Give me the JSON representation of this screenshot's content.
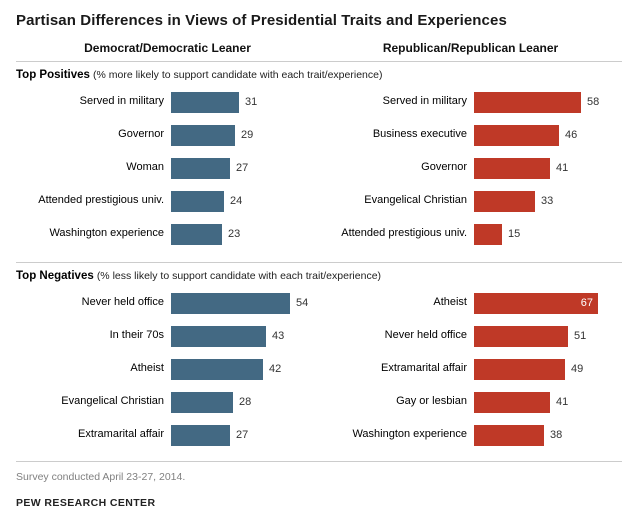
{
  "title": "Partisan Differences in Views of Presidential Traits and Experiences",
  "columns": {
    "left": "Democrat/Democratic Leaner",
    "right": "Republican/Republican Leaner"
  },
  "colors": {
    "dem_blue": "#436983",
    "rep_red": "#bf3927",
    "divider_gray": "#cccccc"
  },
  "footer": {
    "survey_note": "Survey conducted April 23-27, 2014.",
    "source": "PEW RESEARCH CENTER"
  },
  "chart_data": [
    {
      "type": "bar",
      "orientation": "horizontal",
      "title": "Top Positives",
      "subtitle": "(% more likely to support candidate with each trait/experience)",
      "value_unit": "%",
      "xlim": [
        0,
        70
      ],
      "series": [
        {
          "name": "Democrat/Democratic Leaner",
          "color": "#436983",
          "categories": [
            "Served in military",
            "Governor",
            "Woman",
            "Attended prestigious univ.",
            "Washington experience"
          ],
          "values": [
            31,
            29,
            27,
            24,
            23
          ],
          "inside_labels": [
            false,
            false,
            false,
            false,
            false
          ]
        },
        {
          "name": "Republican/Republican Leaner",
          "color": "#bf3927",
          "categories": [
            "Served in military",
            "Business executive",
            "Governor",
            "Evangelical Christian",
            "Attended prestigious univ."
          ],
          "values": [
            58,
            46,
            41,
            33,
            15
          ],
          "inside_labels": [
            false,
            false,
            false,
            false,
            false
          ]
        }
      ]
    },
    {
      "type": "bar",
      "orientation": "horizontal",
      "title": "Top Negatives",
      "subtitle": "(% less likely to support candidate with each trait/experience)",
      "value_unit": "%",
      "xlim": [
        0,
        70
      ],
      "series": [
        {
          "name": "Democrat/Democratic Leaner",
          "color": "#436983",
          "categories": [
            "Never held office",
            "In their 70s",
            "Atheist",
            "Evangelical Christian",
            "Extramarital affair"
          ],
          "values": [
            54,
            43,
            42,
            28,
            27
          ],
          "inside_labels": [
            false,
            false,
            false,
            false,
            false
          ]
        },
        {
          "name": "Republican/Republican Leaner",
          "color": "#bf3927",
          "categories": [
            "Atheist",
            "Never held office",
            "Extramarital affair",
            "Gay or lesbian",
            "Washington experience"
          ],
          "values": [
            67,
            51,
            49,
            41,
            38
          ],
          "inside_labels": [
            true,
            false,
            false,
            false,
            false
          ]
        }
      ]
    }
  ]
}
